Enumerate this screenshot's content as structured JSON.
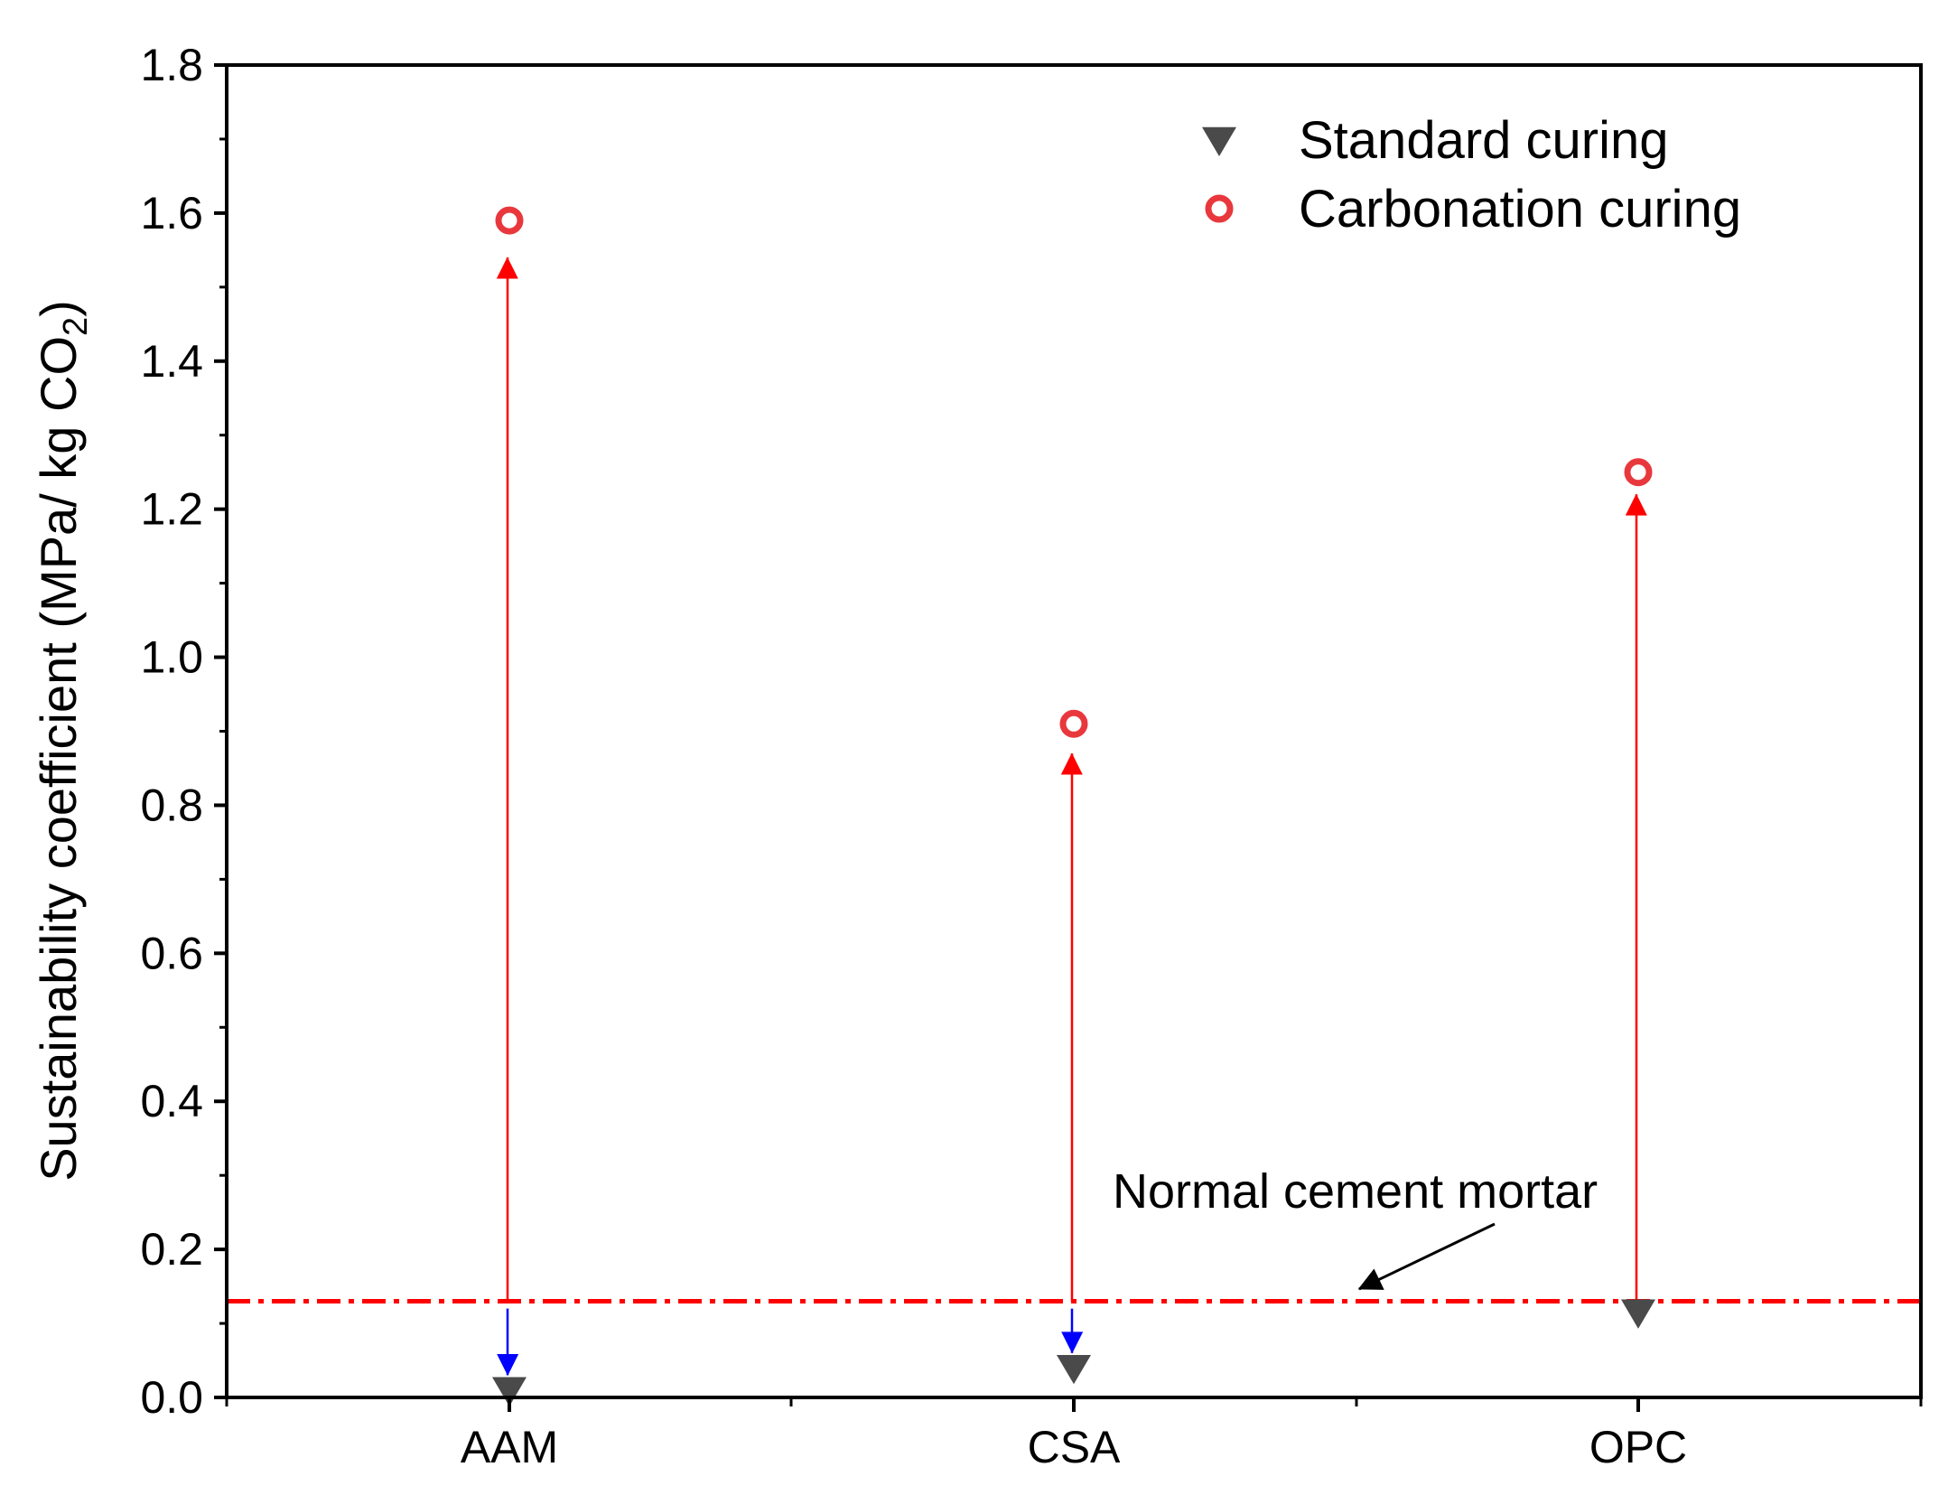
{
  "chart_data": {
    "type": "scatter",
    "categories": [
      "AAM",
      "CSA",
      "OPC"
    ],
    "xlabel": "",
    "ylabel": "Sustainability coefficient (MPa/ kg CO",
    "ylabel_subscript": "2",
    "ylabel_close": ")",
    "ylim": [
      0.0,
      1.8
    ],
    "yticks": [
      "0.0",
      "0.2",
      "0.4",
      "0.6",
      "0.8",
      "1.0",
      "1.2",
      "1.4",
      "1.6",
      "1.8"
    ],
    "ytick_values": [
      0.0,
      0.2,
      0.4,
      0.6,
      0.8,
      1.0,
      1.2,
      1.4,
      1.6,
      1.8
    ],
    "grid": false,
    "legend_position": "top-right",
    "series": [
      {
        "name": "Standard curing",
        "marker": "down-triangle",
        "color": "#4a4a4a",
        "values": [
          0.01,
          0.04,
          0.115
        ]
      },
      {
        "name": "Carbonation curing",
        "marker": "open-circle",
        "color": "#e8383d",
        "values": [
          1.59,
          0.91,
          1.25
        ]
      }
    ],
    "reference_line": {
      "label": "Normal cement mortar",
      "value": 0.13,
      "color": "#ff0000",
      "style": "dash-dot"
    },
    "arrows": [
      {
        "category": "AAM",
        "from": 0.13,
        "to": 1.54,
        "color": "#ff0000"
      },
      {
        "category": "CSA",
        "from": 0.13,
        "to": 0.87,
        "color": "#ff0000"
      },
      {
        "category": "OPC",
        "from": 0.13,
        "to": 1.22,
        "color": "#ff0000"
      },
      {
        "category": "AAM",
        "from": 0.12,
        "to": 0.03,
        "color": "#0000ff"
      },
      {
        "category": "CSA",
        "from": 0.12,
        "to": 0.06,
        "color": "#0000ff"
      }
    ]
  }
}
